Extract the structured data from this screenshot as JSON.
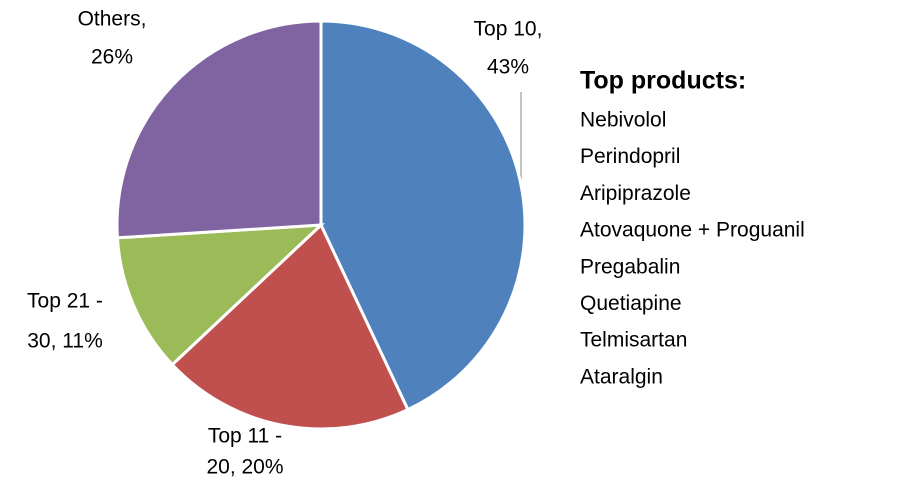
{
  "chart_data": {
    "type": "pie",
    "labels": [
      [
        "Top 10,",
        "43%"
      ],
      [
        "Top 11 -",
        "20, 20%"
      ],
      [
        "Top 21 -",
        "30, 11%"
      ],
      [
        "Others,",
        "26%"
      ]
    ],
    "values": [
      43,
      20,
      11,
      26
    ],
    "colors": [
      "#4f81bd",
      "#c0504d",
      "#9bbb59",
      "#8064a2"
    ],
    "annotation_title": "Top products:",
    "annotation_items": [
      "Nebivolol",
      "Perindopril",
      "Aripiprazole",
      "Atovaquone + Proguanil",
      "Pregabalin",
      "Quetiapine",
      "Telmisartan",
      "Ataralgin"
    ]
  }
}
